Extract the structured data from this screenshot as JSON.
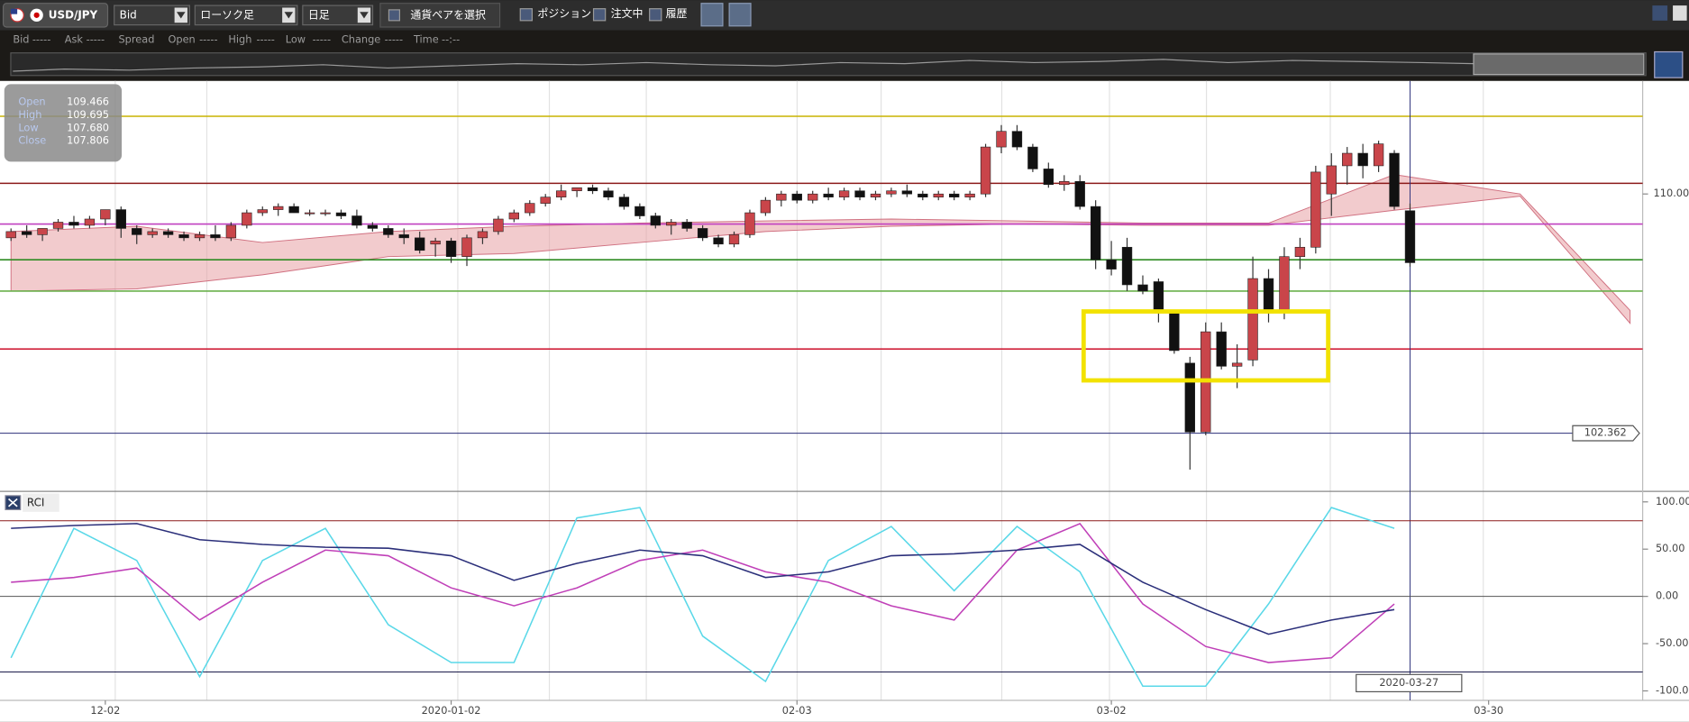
{
  "toolbar": {
    "symbol": "USD/JPY",
    "price_type": "Bid",
    "chart_type": "ローソク足",
    "period": "日足",
    "pair_select": "通貨ペアを選択",
    "toggles": [
      "ポジション",
      "注文中",
      "履歴"
    ]
  },
  "quote_bar": [
    {
      "label": "Bid",
      "value": "-----"
    },
    {
      "label": "Ask",
      "value": "-----"
    },
    {
      "label": "Spread",
      "value": ""
    },
    {
      "label": "Open",
      "value": "-----"
    },
    {
      "label": "High",
      "value": "-----"
    },
    {
      "label": "Low",
      "value": "-----"
    },
    {
      "label": "Change",
      "value": "-----"
    },
    {
      "label": "Time",
      "value": "--:--"
    }
  ],
  "ohlc_box": {
    "labels": [
      "Open",
      "High",
      "Low",
      "Close"
    ],
    "values": [
      "109.466",
      "109.695",
      "107.680",
      "107.806"
    ]
  },
  "chart_data": [
    {
      "type": "candlestick",
      "xlim": [
        -0.7,
        103.8
      ],
      "ylim": [
        100.54,
        113.61
      ],
      "xticks": [
        {
          "value": 6,
          "label": "12-02"
        },
        {
          "value": 28,
          "label": "2020-01-02"
        },
        {
          "value": 50,
          "label": "02-03"
        },
        {
          "value": 70,
          "label": "03-02"
        },
        {
          "value": 94,
          "label": "03-30"
        }
      ],
      "yticks": [
        {
          "value": 110,
          "label": "110.000"
        }
      ],
      "up_color": "#c9454a",
      "down_color": "#111111",
      "ohlc": [
        [
          108.6,
          108.9,
          108.5,
          108.8
        ],
        [
          108.8,
          109.0,
          108.6,
          108.7
        ],
        [
          108.7,
          108.9,
          108.5,
          108.9
        ],
        [
          108.9,
          109.2,
          108.8,
          109.1
        ],
        [
          109.1,
          109.3,
          108.9,
          109.0
        ],
        [
          109.0,
          109.3,
          108.9,
          109.2
        ],
        [
          109.2,
          109.5,
          109.0,
          109.5
        ],
        [
          109.5,
          109.6,
          108.6,
          108.9
        ],
        [
          108.9,
          109.0,
          108.4,
          108.7
        ],
        [
          108.7,
          108.9,
          108.6,
          108.8
        ],
        [
          108.8,
          108.9,
          108.6,
          108.7
        ],
        [
          108.7,
          108.8,
          108.5,
          108.6
        ],
        [
          108.6,
          108.8,
          108.5,
          108.7
        ],
        [
          108.7,
          109.0,
          108.5,
          108.6
        ],
        [
          108.6,
          109.1,
          108.5,
          109.0
        ],
        [
          109.0,
          109.5,
          108.9,
          109.4
        ],
        [
          109.4,
          109.6,
          109.3,
          109.5
        ],
        [
          109.5,
          109.7,
          109.3,
          109.6
        ],
        [
          109.6,
          109.7,
          109.4,
          109.4
        ],
        [
          109.4,
          109.5,
          109.3,
          109.4
        ],
        [
          109.4,
          109.5,
          109.3,
          109.4
        ],
        [
          109.4,
          109.5,
          109.2,
          109.3
        ],
        [
          109.3,
          109.5,
          108.9,
          109.0
        ],
        [
          109.0,
          109.1,
          108.8,
          108.9
        ],
        [
          108.9,
          109.0,
          108.6,
          108.7
        ],
        [
          108.7,
          108.9,
          108.4,
          108.6
        ],
        [
          108.6,
          108.8,
          108.1,
          108.2
        ],
        [
          108.4,
          108.6,
          108.0,
          108.5
        ],
        [
          108.5,
          108.6,
          107.8,
          108.0
        ],
        [
          108.0,
          108.7,
          107.7,
          108.6
        ],
        [
          108.6,
          108.9,
          108.4,
          108.8
        ],
        [
          108.8,
          109.3,
          108.7,
          109.2
        ],
        [
          109.2,
          109.5,
          109.1,
          109.4
        ],
        [
          109.4,
          109.8,
          109.3,
          109.7
        ],
        [
          109.7,
          110.0,
          109.6,
          109.9
        ],
        [
          109.9,
          110.3,
          109.8,
          110.1
        ],
        [
          110.1,
          110.2,
          109.9,
          110.2
        ],
        [
          110.2,
          110.3,
          110.0,
          110.1
        ],
        [
          110.1,
          110.2,
          109.8,
          109.9
        ],
        [
          109.9,
          110.0,
          109.5,
          109.6
        ],
        [
          109.6,
          109.7,
          109.2,
          109.3
        ],
        [
          109.3,
          109.4,
          108.9,
          109.0
        ],
        [
          109.0,
          109.2,
          108.7,
          109.1
        ],
        [
          109.1,
          109.2,
          108.8,
          108.9
        ],
        [
          108.9,
          109.0,
          108.5,
          108.6
        ],
        [
          108.6,
          108.7,
          108.3,
          108.4
        ],
        [
          108.4,
          108.8,
          108.3,
          108.7
        ],
        [
          108.7,
          109.5,
          108.6,
          109.4
        ],
        [
          109.4,
          109.9,
          109.3,
          109.8
        ],
        [
          109.8,
          110.1,
          109.6,
          110.0
        ],
        [
          110.0,
          110.1,
          109.7,
          109.8
        ],
        [
          109.8,
          110.1,
          109.7,
          110.0
        ],
        [
          110.0,
          110.2,
          109.8,
          109.9
        ],
        [
          109.9,
          110.2,
          109.8,
          110.1
        ],
        [
          110.1,
          110.2,
          109.8,
          109.9
        ],
        [
          109.9,
          110.1,
          109.8,
          110.0
        ],
        [
          110.0,
          110.2,
          109.9,
          110.1
        ],
        [
          110.1,
          110.3,
          109.9,
          110.0
        ],
        [
          110.0,
          110.1,
          109.8,
          109.9
        ],
        [
          109.9,
          110.1,
          109.8,
          110.0
        ],
        [
          110.0,
          110.1,
          109.8,
          109.9
        ],
        [
          109.9,
          110.1,
          109.8,
          110.0
        ],
        [
          110.0,
          111.6,
          109.9,
          111.5
        ],
        [
          111.5,
          112.2,
          111.3,
          112.0
        ],
        [
          112.0,
          112.2,
          111.4,
          111.5
        ],
        [
          111.5,
          111.6,
          110.7,
          110.8
        ],
        [
          110.8,
          111.0,
          110.2,
          110.3
        ],
        [
          110.3,
          110.6,
          110.1,
          110.4
        ],
        [
          110.4,
          110.6,
          109.5,
          109.6
        ],
        [
          109.6,
          109.8,
          107.6,
          107.9
        ],
        [
          107.9,
          108.5,
          107.4,
          107.6
        ],
        [
          108.3,
          108.6,
          106.9,
          107.1
        ],
        [
          107.1,
          107.4,
          106.8,
          106.9
        ],
        [
          107.2,
          107.3,
          105.9,
          106.2
        ],
        [
          106.2,
          106.3,
          104.9,
          105.0
        ],
        [
          104.6,
          104.8,
          101.2,
          102.4
        ],
        [
          102.4,
          105.9,
          102.3,
          105.6
        ],
        [
          105.6,
          105.9,
          104.4,
          104.5
        ],
        [
          104.5,
          105.2,
          103.8,
          104.6
        ],
        [
          104.7,
          108.0,
          104.5,
          107.3
        ],
        [
          107.3,
          107.6,
          105.9,
          106.2
        ],
        [
          106.2,
          108.3,
          106.0,
          108.0
        ],
        [
          108.0,
          108.6,
          107.6,
          108.3
        ],
        [
          108.3,
          110.9,
          108.1,
          110.7
        ],
        [
          110.0,
          111.3,
          109.3,
          110.9
        ],
        [
          110.9,
          111.5,
          110.3,
          111.3
        ],
        [
          111.3,
          111.6,
          110.5,
          110.9
        ],
        [
          110.9,
          111.7,
          110.7,
          111.6
        ],
        [
          111.3,
          111.4,
          109.5,
          109.6
        ],
        [
          109.466,
          109.695,
          107.68,
          107.806
        ]
      ],
      "levels": [
        {
          "value": 112.48,
          "color": "#c8b400"
        },
        {
          "value": 110.34,
          "color": "#8b1a1a"
        },
        {
          "value": 109.04,
          "color": "#c040c0"
        },
        {
          "value": 107.9,
          "color": "#2e8b22"
        },
        {
          "value": 106.9,
          "color": "#6ab04c"
        },
        {
          "value": 105.05,
          "color": "#d0203a"
        }
      ],
      "cloud": {
        "x": [
          0,
          8,
          16,
          24,
          32,
          40,
          48,
          56,
          64,
          72,
          80,
          88,
          96,
          103
        ],
        "span_a": [
          108.8,
          108.97,
          108.45,
          108.8,
          108.97,
          109.07,
          109.14,
          109.2,
          109.14,
          109.07,
          109.07,
          110.62,
          110.0,
          106.28
        ],
        "span_b": [
          106.9,
          106.97,
          107.42,
          108.0,
          108.1,
          108.45,
          108.8,
          108.97,
          109.04,
          109.0,
          109.0,
          109.48,
          109.93,
          105.87
        ],
        "color": "#e8a0a4"
      },
      "crosshair": {
        "value": 102.362,
        "date": "2020-03-27",
        "color": "#2b2f7a"
      }
    },
    {
      "type": "line",
      "title": "RCI",
      "xlim": [
        -0.7,
        103.8
      ],
      "ylim": [
        -110,
        110
      ],
      "yticks": [
        {
          "value": 100,
          "label": "100.00"
        },
        {
          "value": 50,
          "label": "50.00"
        },
        {
          "value": 0,
          "label": "0.00"
        },
        {
          "value": -50,
          "label": "-50.00"
        },
        {
          "value": -100,
          "label": "-100.00"
        }
      ],
      "levels": [
        {
          "value": 80,
          "color": "#8b1a1a"
        },
        {
          "value": 0,
          "color": "#555555"
        },
        {
          "value": -80,
          "color": "#1a1a4a"
        }
      ],
      "x": [
        0,
        4,
        8,
        12,
        16,
        20,
        24,
        28,
        32,
        36,
        40,
        44,
        48,
        52,
        56,
        60,
        64,
        68,
        72,
        76,
        80,
        84,
        88
      ],
      "series": [
        {
          "color": "#5ad8e8",
          "values": [
            -65,
            72,
            38,
            -85,
            38,
            72,
            -30,
            -70,
            -70,
            83,
            94,
            -42,
            -90,
            38,
            74,
            6,
            74,
            26,
            -95,
            -95,
            -8,
            94,
            72
          ]
        },
        {
          "color": "#c040b8",
          "values": [
            15,
            20,
            30,
            -25,
            15,
            49,
            43,
            9,
            -10,
            9,
            38,
            49,
            26,
            15,
            -10,
            -25,
            49,
            77,
            -8,
            -53,
            -70,
            -65,
            -8
          ]
        },
        {
          "color": "#2b2f7a",
          "values": [
            72,
            75,
            77,
            60,
            55,
            52,
            51,
            43,
            17,
            35,
            49,
            43,
            20,
            26,
            43,
            45,
            49,
            55,
            15,
            -14,
            -40,
            -25,
            -14
          ]
        }
      ]
    }
  ]
}
